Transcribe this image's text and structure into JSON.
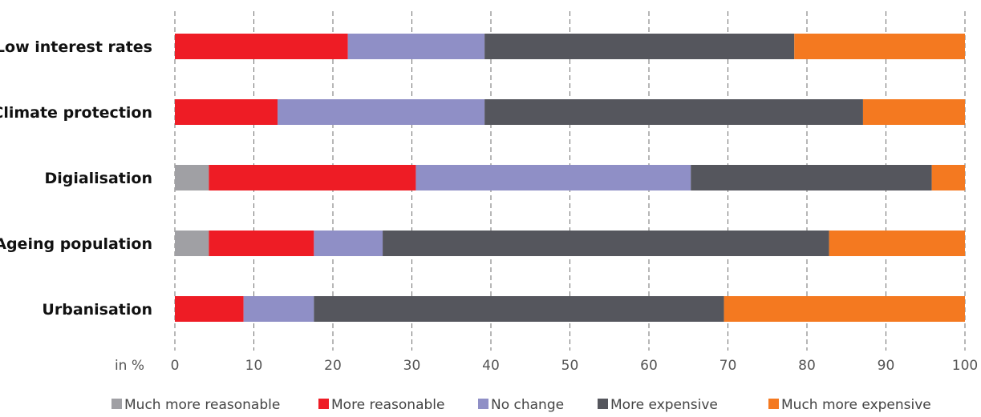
{
  "chart_data": {
    "type": "bar",
    "orientation": "horizontal",
    "stacked": true,
    "unit_label": "in %",
    "xlim": [
      0,
      100
    ],
    "x_ticks": [
      "0",
      "10",
      "20",
      "30",
      "40",
      "50",
      "60",
      "70",
      "80",
      "90",
      "100"
    ],
    "grid": "vertical dashed",
    "legend_position": "bottom",
    "categories": [
      "Low interest rates",
      "Climate protection",
      "Digialisation",
      "Ageing population",
      "Urbanisation"
    ],
    "series": [
      {
        "name": "Much more reasonable",
        "color": "#a0a0a4",
        "values": [
          0,
          0,
          4.3,
          4.3,
          0
        ]
      },
      {
        "name": "More reasonable",
        "color": "#ee1c25",
        "values": [
          21.9,
          13.0,
          26.2,
          13.3,
          8.7
        ]
      },
      {
        "name": "No change",
        "color": "#8f8fc6",
        "values": [
          17.3,
          26.2,
          34.8,
          8.7,
          8.9
        ]
      },
      {
        "name": "More expensive",
        "color": "#55565d",
        "values": [
          39.2,
          47.9,
          30.5,
          56.5,
          51.9
        ]
      },
      {
        "name": "Much more expensive",
        "color": "#f47920",
        "values": [
          21.6,
          12.9,
          4.2,
          17.2,
          30.5
        ]
      }
    ]
  }
}
